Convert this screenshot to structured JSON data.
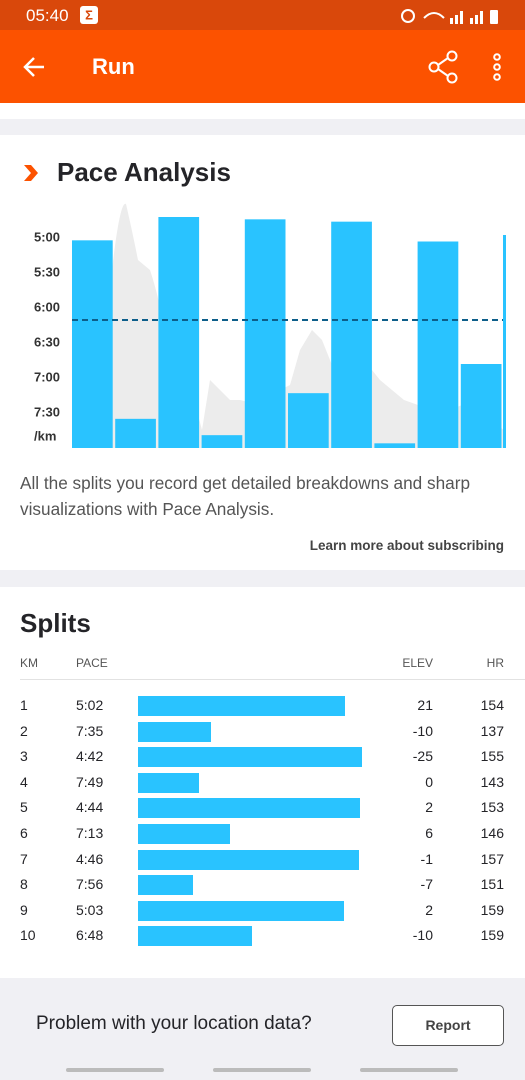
{
  "status_bar": {
    "time": "05:40"
  },
  "app_bar": {
    "title": "Run"
  },
  "pace_analysis": {
    "title": "Pace Analysis",
    "y_labels": [
      "5:00",
      "5:30",
      "6:00",
      "6:30",
      "7:00",
      "7:30"
    ],
    "y_unit": "/km",
    "description": "All the splits you record get detailed breakdowns and sharp visualizations with Pace Analysis.",
    "link": "Learn more about subscribing"
  },
  "splits": {
    "title": "Splits",
    "columns": [
      "KM",
      "PACE",
      "ELEV",
      "HR"
    ],
    "rows": [
      [
        1,
        "5:02",
        21,
        154
      ],
      [
        2,
        "7:35",
        -10,
        137
      ],
      [
        3,
        "4:42",
        -25,
        155
      ],
      [
        4,
        "7:49",
        0,
        143
      ],
      [
        5,
        "4:44",
        2,
        153
      ],
      [
        6,
        "7:13",
        6,
        146
      ],
      [
        7,
        "4:46",
        -1,
        157
      ],
      [
        8,
        "7:56",
        -7,
        151
      ],
      [
        9,
        "5:03",
        2,
        159
      ],
      [
        10,
        "6:48",
        -10,
        159
      ]
    ]
  },
  "footer": {
    "question": "Problem with your location data?",
    "button": "Report"
  }
}
